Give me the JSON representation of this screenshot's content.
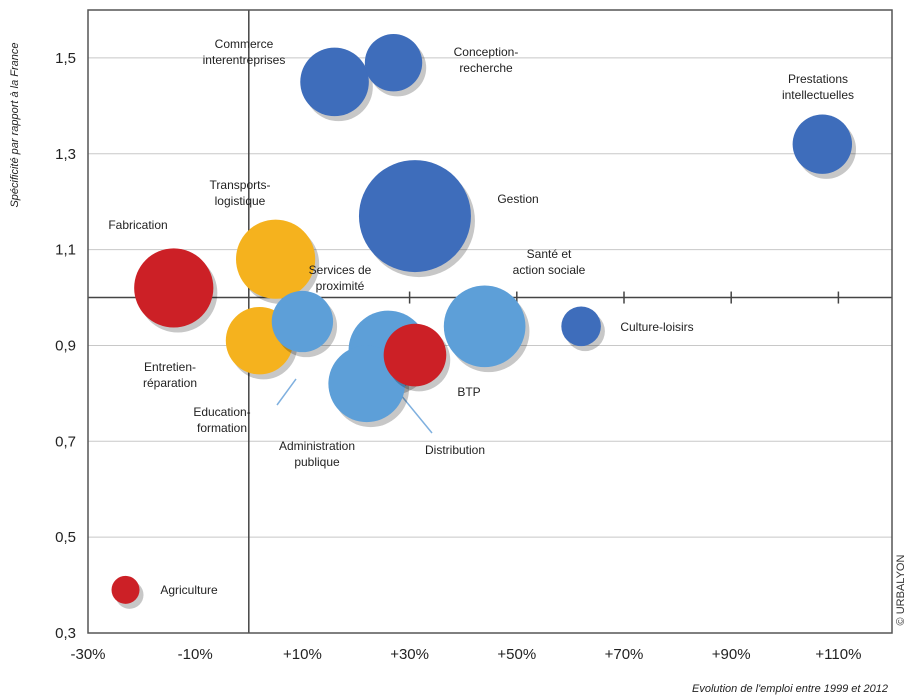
{
  "chart_data": {
    "type": "scatter",
    "subtype": "bubble",
    "xlabel": "Evolution de l'emploi entre 1999 et 2012",
    "ylabel": "Spécificité par rapport à la France",
    "xlim": [
      -30,
      120
    ],
    "ylim": [
      0.3,
      1.6
    ],
    "x_ticks": [
      {
        "value": -30,
        "label": "-30%"
      },
      {
        "value": -10,
        "label": "-10%"
      },
      {
        "value": 10,
        "label": "+10%"
      },
      {
        "value": 30,
        "label": "+30%"
      },
      {
        "value": 50,
        "label": "+50%"
      },
      {
        "value": 70,
        "label": "+70%"
      },
      {
        "value": 90,
        "label": "+90%"
      },
      {
        "value": 110,
        "label": "+110%"
      }
    ],
    "y_ticks": [
      {
        "value": 0.3,
        "label": "0,3"
      },
      {
        "value": 0.5,
        "label": "0,5"
      },
      {
        "value": 0.7,
        "label": "0,7"
      },
      {
        "value": 0.9,
        "label": "0,9"
      },
      {
        "value": 1.1,
        "label": "1,1"
      },
      {
        "value": 1.3,
        "label": "1,3"
      },
      {
        "value": 1.5,
        "label": "1,5"
      }
    ],
    "reference_lines": {
      "x": 0,
      "y": 1.0
    },
    "grid": "horizontal",
    "colors": {
      "dark_blue": "#3e6dbb",
      "light_blue": "#5d9fd8",
      "orange": "#f5b21e",
      "red": "#cc2026"
    },
    "points": [
      {
        "label": [
          "Commerce",
          "interentreprises"
        ],
        "x": 16,
        "y": 1.45,
        "size": 6.0,
        "color": "dark_blue"
      },
      {
        "label": [
          "Conception-",
          "recherche"
        ],
        "x": 27,
        "y": 1.49,
        "size": 4.2,
        "color": "dark_blue"
      },
      {
        "label": [
          "Prestations",
          "intellectuelles"
        ],
        "x": 107,
        "y": 1.32,
        "size": 4.5,
        "color": "dark_blue"
      },
      {
        "label": [
          "Gestion"
        ],
        "x": 31,
        "y": 1.17,
        "size": 16.0,
        "color": "dark_blue"
      },
      {
        "label": [
          "Culture-loisirs"
        ],
        "x": 62,
        "y": 0.94,
        "size": 2.0,
        "color": "dark_blue"
      },
      {
        "label": [
          "Santé et",
          "action sociale"
        ],
        "x": 44,
        "y": 0.94,
        "size": 8.5,
        "color": "light_blue"
      },
      {
        "label": [
          "Distribution"
        ],
        "x": 26,
        "y": 0.89,
        "size": 8.0,
        "color": "light_blue"
      },
      {
        "label": [
          "Administration",
          "publique"
        ],
        "x": 22,
        "y": 0.82,
        "size": 7.5,
        "color": "light_blue"
      },
      {
        "label": [
          "Services de",
          "proximité"
        ],
        "x": 10,
        "y": 0.95,
        "size": 4.8,
        "color": "light_blue"
      },
      {
        "label": [
          "Transports-",
          "logistique"
        ],
        "x": 5,
        "y": 1.08,
        "size": 8.0,
        "color": "orange"
      },
      {
        "label": [
          "Entretien-",
          "réparation"
        ],
        "x": 2,
        "y": 0.91,
        "size": 5.8,
        "color": "orange"
      },
      {
        "label": [
          "Education-",
          "formation"
        ],
        "x": 2,
        "y": 0.91,
        "size": 0,
        "color": "orange"
      },
      {
        "label": [
          "Fabrication"
        ],
        "x": -14,
        "y": 1.02,
        "size": 8.0,
        "color": "red"
      },
      {
        "label": [
          "BTP"
        ],
        "x": 31,
        "y": 0.88,
        "size": 5.0,
        "color": "red"
      },
      {
        "label": [
          "Agriculture"
        ],
        "x": -23,
        "y": 0.39,
        "size": 1.0,
        "color": "red"
      }
    ],
    "credit": "© URBALYON"
  }
}
